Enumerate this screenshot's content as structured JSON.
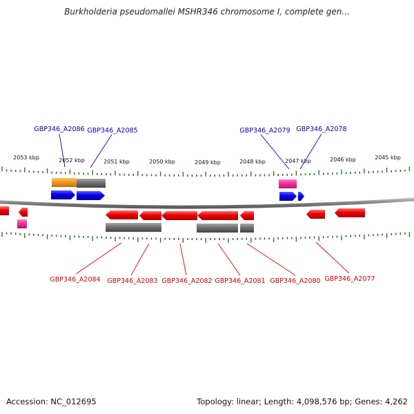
{
  "title": "Burkholderia pseudomallei MSHR346 chromosome I, complete gen...",
  "footer": {
    "accession": "Accession: NC_012695",
    "topology": "Topology: linear; Length: 4,098,576 bp; Genes: 4,262"
  },
  "colors": {
    "forward_gene": "#0000ee",
    "reverse_gene": "#ee0000",
    "cds": "#707070",
    "orange_feature": "#f39a1e",
    "pink_feature": "#ee3399",
    "tick": "#1e7a1e",
    "backbone": "#808080"
  },
  "scale_labels": [
    "2053 kbp",
    "2052 kbp",
    "2051 kbp",
    "2050 kbp",
    "2049 kbp",
    "2048 kbp",
    "2047 kbp",
    "2046 kbp",
    "2045 kbp"
  ],
  "forward_genes": [
    "GBP346_A2086",
    "GBP346_A2085",
    "GBP346_A2079",
    "GBP346_A2078"
  ],
  "reverse_genes": [
    "GBP346_A2084",
    "GBP346_A2083",
    "GBP346_A2082",
    "GBP346_A2081",
    "GBP346_A2080",
    "GBP346_A2077"
  ]
}
